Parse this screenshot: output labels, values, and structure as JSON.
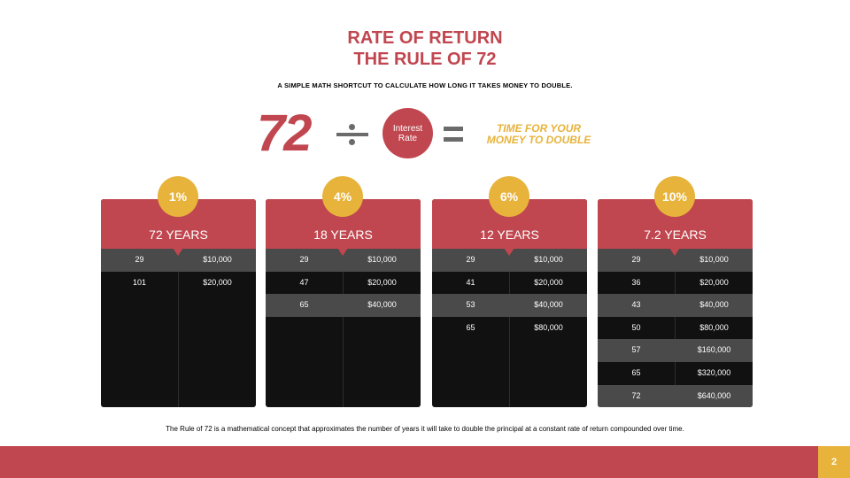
{
  "title_line1": "RATE OF RETURN",
  "title_line2": "THE RULE OF 72",
  "subtitle": "A SIMPLE MATH SHORTCUT TO CALCULATE HOW LONG IT TAKES MONEY TO DOUBLE.",
  "formula": {
    "number": "72",
    "circle_line1": "Interest",
    "circle_line2": "Rate",
    "result_line1": "TIME FOR YOUR",
    "result_line2": "MONEY TO DOUBLE"
  },
  "colors": {
    "accent_red": "#c0464f",
    "accent_gold": "#e7b33b",
    "card_bg": "#111111",
    "row_grey": "#4a4a4a",
    "sign_grey": "#6b6b6b"
  },
  "cards": [
    {
      "rate": "1%",
      "years": "72 YEARS",
      "rows": [
        [
          "29",
          "$10,000"
        ],
        [
          "101",
          "$20,000"
        ]
      ]
    },
    {
      "rate": "4%",
      "years": "18 YEARS",
      "rows": [
        [
          "29",
          "$10,000"
        ],
        [
          "47",
          "$20,000"
        ],
        [
          "65",
          "$40,000"
        ]
      ]
    },
    {
      "rate": "6%",
      "years": "12 YEARS",
      "rows": [
        [
          "29",
          "$10,000"
        ],
        [
          "41",
          "$20,000"
        ],
        [
          "53",
          "$40,000"
        ],
        [
          "65",
          "$80,000"
        ]
      ]
    },
    {
      "rate": "10%",
      "years": "7.2 YEARS",
      "rows": [
        [
          "29",
          "$10,000"
        ],
        [
          "36",
          "$20,000"
        ],
        [
          "43",
          "$40,000"
        ],
        [
          "50",
          "$80,000"
        ],
        [
          "57",
          "$160,000"
        ],
        [
          "65",
          "$320,000"
        ],
        [
          "72",
          "$640,000"
        ]
      ]
    }
  ],
  "footnote": "The Rule of 72 is a mathematical concept that approximates the number of years it will take to double the principal at a constant rate of return compounded over time.",
  "page_number": "2"
}
